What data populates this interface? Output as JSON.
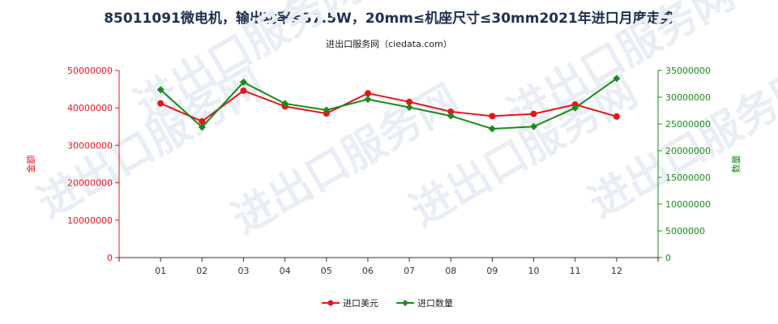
{
  "chart_data": {
    "type": "line",
    "title": "85011091微电机，输出功率≤37.5W，20mm≤机座尺寸≤30mm2021年进口月度走势",
    "subtitle": "进出口服务网（ciedata.com）",
    "watermark": "进出口服务网",
    "categories": [
      "01",
      "02",
      "03",
      "04",
      "05",
      "06",
      "07",
      "08",
      "09",
      "10",
      "11",
      "12"
    ],
    "y_left": {
      "label": "金额",
      "min": 0,
      "max": 50000000,
      "ticks": [
        0,
        10000000,
        20000000,
        30000000,
        40000000,
        50000000
      ],
      "tick_labels": [
        "0",
        "10000000",
        "20000000",
        "30000000",
        "40000000",
        "50000000"
      ],
      "color": "#e8141b"
    },
    "y_right": {
      "label": "数量",
      "min": 0,
      "max": 35000000,
      "ticks": [
        0,
        5000000,
        10000000,
        15000000,
        20000000,
        25000000,
        30000000,
        35000000
      ],
      "tick_labels": [
        "0",
        "5000000",
        "10000000",
        "15000000",
        "20000000",
        "25000000",
        "30000000",
        "35000000"
      ],
      "color": "#1a8a1a"
    },
    "series": [
      {
        "name": "进口美元",
        "axis": "left",
        "color": "#e8141b",
        "marker": "circle",
        "values": [
          41200000,
          36400000,
          44600000,
          40400000,
          38500000,
          43900000,
          41600000,
          39000000,
          37800000,
          38400000,
          40900000,
          37700000
        ]
      },
      {
        "name": "进口数量",
        "axis": "right",
        "color": "#1a8a1a",
        "marker": "diamond",
        "values": [
          31400000,
          24400000,
          32800000,
          28800000,
          27600000,
          29600000,
          28100000,
          26500000,
          24100000,
          24500000,
          28000000,
          33500000
        ]
      }
    ],
    "grid": false,
    "legend_position": "bottom-center"
  }
}
